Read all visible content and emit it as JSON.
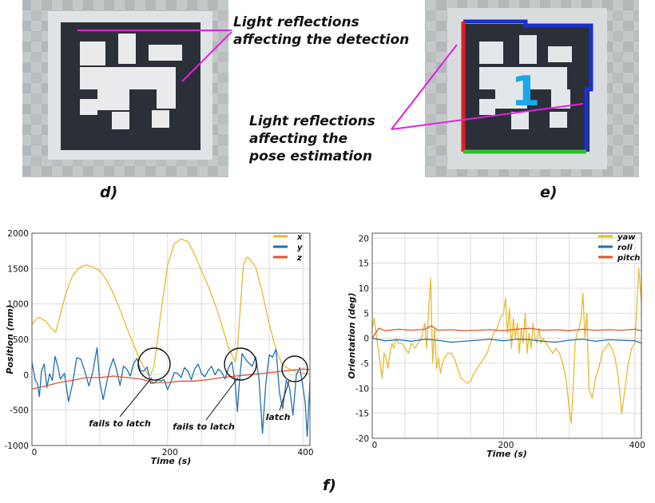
{
  "panels": {
    "d": {
      "label": "d)",
      "annotation_lines": [
        "Light reflections",
        "affecting the detection"
      ]
    },
    "e": {
      "label": "e)",
      "annotation_lines": [
        "Light reflections",
        "affecting the",
        "pose estimation"
      ],
      "marker_id": "1"
    },
    "f": {
      "label": "f)"
    }
  },
  "colors": {
    "series_x": "#e8b92e",
    "series_y": "#1f6fb0",
    "series_z": "#e0552a",
    "marker_blue": "#1a2fd0",
    "marker_red": "#e02020",
    "marker_green": "#2fc02f",
    "marker_id": "#1aa8e8",
    "annotation": "#e020e0"
  },
  "chart_data": [
    {
      "type": "line",
      "title": "",
      "xlabel": "Time (s)",
      "ylabel": "Position (mm)",
      "xlim": [
        0,
        410
      ],
      "ylim": [
        -1000,
        2000
      ],
      "x_ticks": [
        0,
        200,
        400
      ],
      "y_ticks": [
        -1000,
        -500,
        0,
        500,
        1000,
        1500,
        2000
      ],
      "x_tick_labels": [
        "0",
        "200",
        "400"
      ],
      "y_tick_labels": [
        "-1000",
        "-500",
        "0",
        "500",
        "1000",
        "1500",
        "2000"
      ],
      "legend_position": "top-right",
      "grid": true,
      "series": [
        {
          "name": "x",
          "color": "#e8b92e",
          "x": [
            0,
            5,
            10,
            20,
            30,
            35,
            40,
            50,
            60,
            70,
            80,
            90,
            100,
            110,
            120,
            130,
            140,
            150,
            160,
            170,
            175,
            180,
            185,
            190,
            200,
            210,
            220,
            230,
            240,
            250,
            260,
            270,
            280,
            290,
            300,
            303,
            307,
            312,
            317,
            320,
            330,
            340,
            350,
            360,
            370,
            380,
            390,
            400,
            410
          ],
          "values": [
            710,
            770,
            810,
            760,
            640,
            600,
            780,
            1150,
            1400,
            1510,
            1550,
            1520,
            1470,
            1340,
            1150,
            920,
            660,
            420,
            200,
            20,
            -10,
            120,
            480,
            870,
            1550,
            1850,
            1920,
            1880,
            1700,
            1470,
            1250,
            1000,
            700,
            380,
            180,
            350,
            900,
            1560,
            1660,
            1650,
            1520,
            1150,
            720,
            350,
            130,
            80,
            40,
            20,
            20
          ]
        },
        {
          "name": "y",
          "color": "#1f6fb0",
          "x": [
            0,
            5,
            8,
            11,
            14,
            18,
            22,
            26,
            30,
            34,
            38,
            42,
            48,
            54,
            60,
            66,
            72,
            78,
            84,
            90,
            96,
            100,
            105,
            110,
            115,
            120,
            125,
            130,
            135,
            140,
            145,
            150,
            155,
            160,
            165,
            170,
            175,
            180,
            186,
            190,
            195,
            200,
            205,
            210,
            215,
            220,
            225,
            230,
            235,
            240,
            245,
            250,
            255,
            260,
            265,
            270,
            275,
            280,
            285,
            290,
            295,
            300,
            303,
            306,
            310,
            315,
            320,
            325,
            330,
            335,
            340,
            345,
            350,
            355,
            360,
            365,
            370,
            375,
            380,
            385,
            390,
            395,
            400,
            403,
            406,
            410
          ],
          "values": [
            180,
            -80,
            -120,
            -310,
            50,
            150,
            -180,
            10,
            -80,
            260,
            120,
            -60,
            20,
            -380,
            -120,
            240,
            220,
            50,
            -160,
            50,
            380,
            -100,
            -350,
            -120,
            90,
            230,
            60,
            -150,
            120,
            80,
            -20,
            160,
            230,
            60,
            50,
            110,
            -120,
            -120,
            -70,
            -90,
            -70,
            -210,
            -100,
            30,
            20,
            -40,
            100,
            50,
            -70,
            80,
            150,
            20,
            -30,
            60,
            120,
            0,
            80,
            30,
            -60,
            100,
            180,
            -140,
            -520,
            -100,
            300,
            220,
            160,
            120,
            250,
            -60,
            -830,
            -120,
            280,
            250,
            360,
            -250,
            -480,
            -80,
            -180,
            -570,
            0,
            100,
            -190,
            -400,
            -870,
            -100
          ]
        },
        {
          "name": "z",
          "color": "#e0552a",
          "x": [
            0,
            20,
            40,
            60,
            80,
            100,
            120,
            140,
            160,
            180,
            200,
            220,
            240,
            260,
            280,
            300,
            320,
            340,
            360,
            380,
            400,
            410
          ],
          "values": [
            -200,
            -160,
            -110,
            -80,
            -40,
            -40,
            -20,
            -40,
            -60,
            -110,
            -110,
            -90,
            -90,
            -70,
            -40,
            -20,
            0,
            20,
            40,
            60,
            80,
            70
          ]
        }
      ],
      "annotations": [
        {
          "text": "fails to latch",
          "at": [
            180,
            150
          ]
        },
        {
          "text": "fails to latch",
          "at": [
            312,
            130
          ]
        },
        {
          "text": "latch",
          "at": [
            388,
            100
          ]
        }
      ]
    },
    {
      "type": "line",
      "title": "",
      "xlabel": "Time (s)",
      "ylabel": "Orientation (deg)",
      "xlim": [
        0,
        410
      ],
      "ylim": [
        -20,
        21
      ],
      "x_ticks": [
        0,
        200,
        400
      ],
      "y_ticks": [
        -20,
        -15,
        -10,
        -5,
        0,
        5,
        10,
        15,
        20
      ],
      "x_tick_labels": [
        "0",
        "200",
        "400"
      ],
      "y_tick_labels": [
        "-20",
        "-15",
        "-10",
        "-5",
        "0",
        "5",
        "10",
        "15",
        "20"
      ],
      "legend_position": "top-right",
      "grid": true,
      "series": [
        {
          "name": "yaw",
          "color": "#e8b92e",
          "x": [
            0,
            3,
            6,
            9,
            12,
            15,
            18,
            21,
            24,
            27,
            30,
            33,
            36,
            40,
            45,
            50,
            55,
            60,
            65,
            70,
            75,
            80,
            83,
            86,
            89,
            92,
            95,
            98,
            101,
            104,
            107,
            110,
            115,
            120,
            125,
            130,
            135,
            140,
            145,
            150,
            155,
            160,
            165,
            170,
            175,
            180,
            185,
            190,
            195,
            200,
            203,
            206,
            209,
            212,
            215,
            218,
            221,
            224,
            227,
            230,
            233,
            236,
            239,
            242,
            245,
            248,
            251,
            254,
            257,
            260,
            265,
            270,
            275,
            280,
            285,
            290,
            295,
            300,
            303,
            306,
            309,
            312,
            315,
            318,
            321,
            324,
            327,
            330,
            335,
            340,
            345,
            350,
            355,
            360,
            365,
            370,
            375,
            380,
            385,
            390,
            395,
            400,
            403,
            406,
            410
          ],
          "values": [
            2,
            4,
            1,
            -2,
            -5,
            -8,
            -3,
            -4,
            -6,
            -3,
            -1,
            -2,
            0,
            -1,
            -1,
            -2,
            -3,
            -1,
            -2,
            -1,
            0,
            3,
            -2,
            6,
            12,
            -5,
            2,
            -6,
            -4,
            -7,
            -5,
            -4,
            -3,
            -3,
            -4,
            -6,
            -8,
            -8.5,
            -9,
            -8.5,
            -7,
            -6,
            -5,
            -4,
            -3,
            -1,
            1,
            2,
            4,
            5,
            8,
            1,
            6,
            -2,
            4,
            0,
            3,
            -3,
            2,
            -1,
            5,
            -3,
            1,
            -2,
            3,
            0,
            -1,
            2,
            -1,
            0,
            -1,
            -2,
            -3,
            -2,
            -3,
            -5,
            -8,
            -14,
            -17,
            -10,
            -1,
            1,
            2,
            4,
            9,
            0,
            5,
            -10,
            -12,
            -8,
            -6,
            -3,
            -2,
            -1,
            -2,
            -4,
            -8,
            -15,
            -10,
            -5,
            -2,
            -1,
            6,
            14,
            7
          ]
        },
        {
          "name": "roll",
          "color": "#1f6fb0",
          "x": [
            0,
            20,
            40,
            60,
            80,
            100,
            120,
            140,
            160,
            180,
            200,
            220,
            240,
            260,
            280,
            300,
            320,
            340,
            360,
            380,
            400,
            410
          ],
          "values": [
            0,
            -0.5,
            -0.3,
            -0.6,
            -0.2,
            -0.4,
            -0.8,
            -0.6,
            -0.4,
            -0.2,
            -0.5,
            -0.2,
            -0.3,
            -0.6,
            -0.8,
            -0.4,
            -0.2,
            -0.6,
            -0.3,
            -0.4,
            -0.5,
            -1
          ]
        },
        {
          "name": "pitch",
          "color": "#e0552a",
          "x": [
            0,
            10,
            20,
            40,
            60,
            80,
            90,
            100,
            120,
            140,
            160,
            180,
            200,
            220,
            240,
            260,
            280,
            300,
            320,
            340,
            360,
            380,
            400,
            410
          ],
          "values": [
            0,
            2,
            1.5,
            1.8,
            1.6,
            1.8,
            2.5,
            1.6,
            1.7,
            1.5,
            1.6,
            1.7,
            1.5,
            1.8,
            2,
            1.6,
            1.7,
            1.5,
            1.8,
            1.6,
            1.7,
            1.6,
            1.8,
            1.5
          ]
        }
      ],
      "annotations": []
    }
  ]
}
